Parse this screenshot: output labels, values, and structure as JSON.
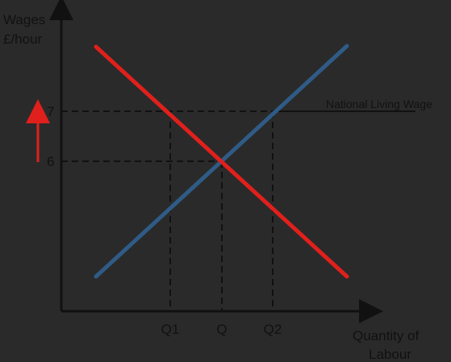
{
  "diagram": {
    "y_axis_label_line1": "Wages",
    "y_axis_label_line2": "£/hour",
    "x_axis_label_line1": "Quantity of",
    "x_axis_label_line2": "Labour",
    "y_ticks": [
      "7",
      "6"
    ],
    "x_ticks": [
      "Q1",
      "Q",
      "Q2"
    ],
    "floor_label": "National Living Wage",
    "colors": {
      "background": "#2a2a2a",
      "demand_curve": "#e0201c",
      "supply_curve": "#2f5b86",
      "axes_and_text": "#111111",
      "arrow": "#e0201c"
    }
  }
}
